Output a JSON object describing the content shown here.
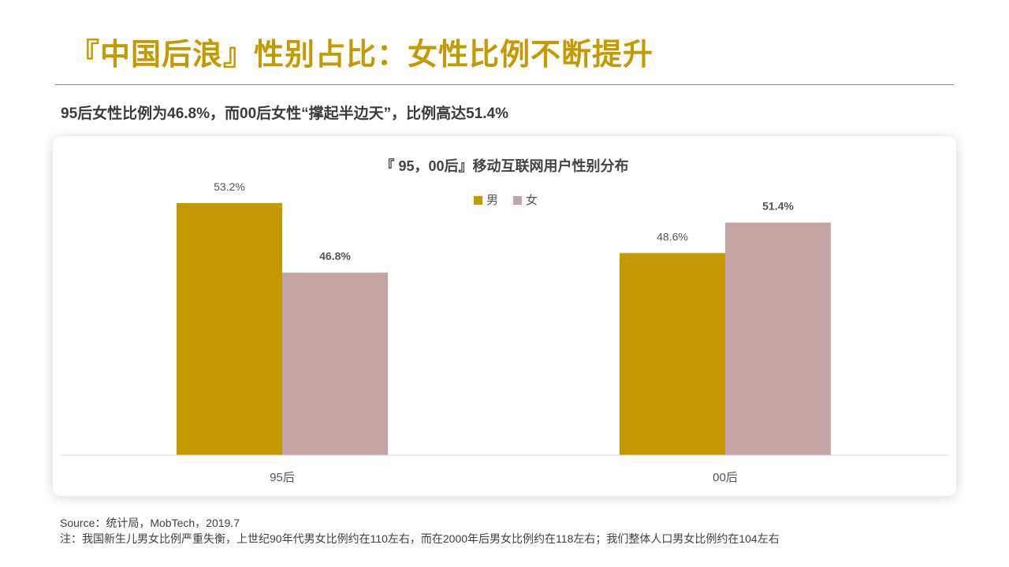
{
  "page": {
    "title": "『中国后浪』性别占比：女性比例不断提升",
    "subtitle": "95后女性比例为46.8%，而00后女性“撑起半边天”，比例高达51.4%",
    "footer_source": "Source：统计局，MobTech，2019.7",
    "footer_note": "注：我国新生儿男女比例严重失衡，上世纪90年代男女比例约在110左右，而在2000年后男女比例约在118左右；我们整体人口男女比例约在104左右"
  },
  "colors": {
    "accent": "#C39A00",
    "male": "#C49A00",
    "female": "#C4A4A5"
  },
  "chart_data": {
    "type": "bar",
    "title": "『 95，00后』移动互联网用户性别分布",
    "categories": [
      "95后",
      "00后"
    ],
    "series": [
      {
        "name": "男",
        "values": [
          53.2,
          48.6
        ],
        "labels": [
          "53.2%",
          "48.6%"
        ],
        "color": "#C49A00",
        "label_bold": [
          false,
          false
        ]
      },
      {
        "name": "女",
        "values": [
          46.8,
          51.4
        ],
        "labels": [
          "46.8%",
          "51.4%"
        ],
        "color": "#C4A4A5",
        "label_bold": [
          true,
          true
        ]
      }
    ],
    "ylim": [
      30,
      55
    ],
    "legend": "top-center",
    "grid": false
  }
}
